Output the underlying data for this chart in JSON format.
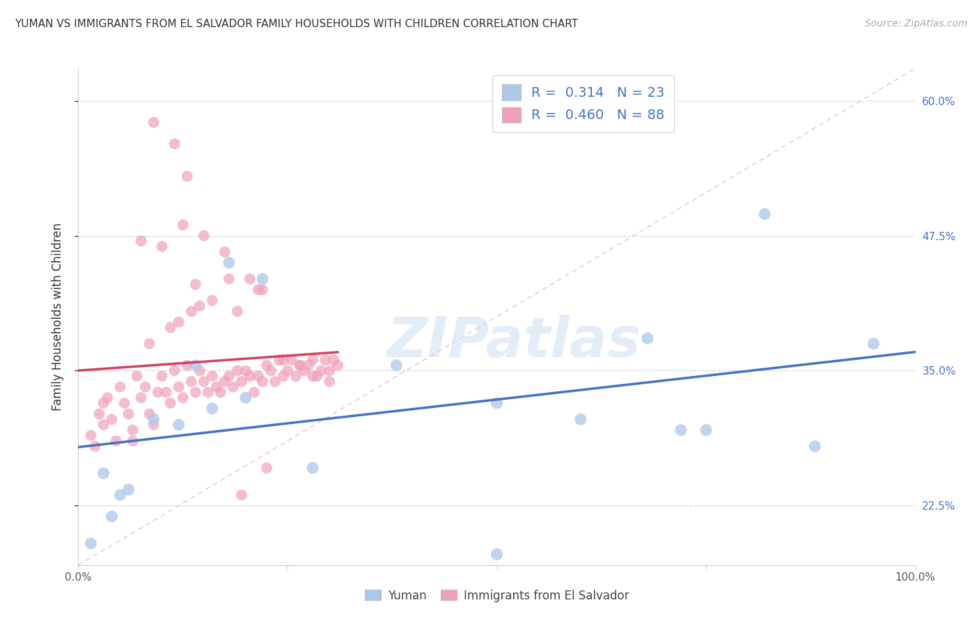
{
  "title": "YUMAN VS IMMIGRANTS FROM EL SALVADOR FAMILY HOUSEHOLDS WITH CHILDREN CORRELATION CHART",
  "source": "Source: ZipAtlas.com",
  "ylabel": "Family Households with Children",
  "xlim": [
    0,
    100
  ],
  "ylim": [
    17.0,
    63.0
  ],
  "yticks": [
    22.5,
    35.0,
    47.5,
    60.0
  ],
  "xticks": [
    0,
    25,
    50,
    75,
    100
  ],
  "xtick_labels": [
    "0.0%",
    "",
    "",
    "",
    "100.0%"
  ],
  "ytick_labels_right": [
    "22.5%",
    "35.0%",
    "47.5%",
    "60.0%"
  ],
  "blue_dot_color": "#aac8e8",
  "pink_dot_color": "#f0a0b8",
  "blue_line_color": "#4472c4",
  "pink_line_color": "#d44060",
  "ref_line_color": "#e8a0b0",
  "legend_R_blue": "0.314",
  "legend_N_blue": "23",
  "legend_R_pink": "0.460",
  "legend_N_pink": "88",
  "legend_value_color": "#4472c4",
  "watermark_color": "#c8ddf0",
  "blue_x": [
    1.5,
    4.0,
    9.0,
    12.0,
    16.0,
    18.0,
    20.0,
    22.0,
    5.0,
    14.0,
    50.0,
    68.0,
    75.0,
    88.0,
    95.0,
    3.0,
    6.0,
    28.0,
    38.0,
    60.0,
    72.0,
    82.0,
    50.0
  ],
  "blue_y": [
    19.0,
    21.5,
    30.5,
    30.0,
    31.5,
    45.0,
    32.5,
    43.5,
    23.5,
    35.5,
    32.0,
    38.0,
    29.5,
    28.0,
    37.5,
    25.5,
    24.0,
    26.0,
    35.5,
    30.5,
    29.5,
    49.5,
    18.0
  ],
  "pink_x": [
    1.5,
    2.0,
    2.5,
    3.0,
    3.5,
    4.0,
    4.5,
    5.0,
    5.5,
    6.0,
    6.5,
    7.0,
    7.5,
    8.0,
    8.5,
    9.0,
    9.5,
    10.0,
    10.5,
    11.0,
    11.5,
    12.0,
    12.5,
    13.0,
    13.5,
    14.0,
    14.5,
    15.0,
    15.5,
    16.0,
    16.5,
    17.0,
    17.5,
    18.0,
    18.5,
    19.0,
    19.5,
    20.0,
    20.5,
    21.0,
    21.5,
    22.0,
    22.5,
    23.0,
    23.5,
    24.0,
    24.5,
    25.0,
    25.5,
    26.0,
    26.5,
    27.0,
    27.5,
    28.0,
    28.5,
    29.0,
    29.5,
    30.0,
    30.5,
    31.0,
    12.0,
    14.5,
    18.0,
    21.5,
    8.5,
    11.0,
    13.5,
    16.0,
    19.0,
    22.0,
    7.5,
    10.0,
    12.5,
    15.0,
    17.5,
    20.5,
    24.5,
    26.5,
    28.0,
    30.0,
    9.0,
    11.5,
    13.0,
    19.5,
    3.0,
    6.5,
    14.0,
    22.5
  ],
  "pink_y": [
    29.0,
    28.0,
    31.0,
    30.0,
    32.5,
    30.5,
    28.5,
    33.5,
    32.0,
    31.0,
    29.5,
    34.5,
    32.5,
    33.5,
    31.0,
    30.0,
    33.0,
    34.5,
    33.0,
    32.0,
    35.0,
    33.5,
    32.5,
    35.5,
    34.0,
    33.0,
    35.0,
    34.0,
    33.0,
    34.5,
    33.5,
    33.0,
    34.0,
    34.5,
    33.5,
    35.0,
    34.0,
    35.0,
    34.5,
    33.0,
    34.5,
    34.0,
    35.5,
    35.0,
    34.0,
    36.0,
    34.5,
    35.0,
    36.0,
    34.5,
    35.5,
    35.0,
    35.5,
    36.0,
    34.5,
    35.0,
    36.0,
    35.0,
    36.0,
    35.5,
    39.5,
    41.0,
    43.5,
    42.5,
    37.5,
    39.0,
    40.5,
    41.5,
    40.5,
    42.5,
    47.0,
    46.5,
    48.5,
    47.5,
    46.0,
    43.5,
    36.0,
    35.5,
    34.5,
    34.0,
    58.0,
    56.0,
    53.0,
    23.5,
    32.0,
    28.5,
    43.0,
    26.0
  ]
}
